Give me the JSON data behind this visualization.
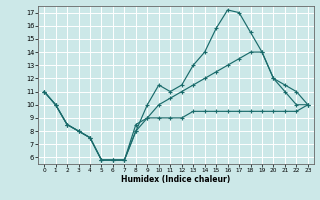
{
  "xlabel": "Humidex (Indice chaleur)",
  "bg_color": "#cce8e8",
  "grid_color": "#ffffff",
  "line_color": "#1a6b6b",
  "xlim": [
    -0.5,
    23.5
  ],
  "ylim": [
    5.5,
    17.5
  ],
  "xticks": [
    0,
    1,
    2,
    3,
    4,
    5,
    6,
    7,
    8,
    9,
    10,
    11,
    12,
    13,
    14,
    15,
    16,
    17,
    18,
    19,
    20,
    21,
    22,
    23
  ],
  "yticks": [
    6,
    7,
    8,
    9,
    10,
    11,
    12,
    13,
    14,
    15,
    16,
    17
  ],
  "line1_x": [
    0,
    1,
    2,
    3,
    4,
    5,
    6,
    7,
    8,
    9,
    10,
    11,
    12,
    13,
    14,
    15,
    16,
    17,
    18,
    19,
    20,
    21,
    22,
    23
  ],
  "line1_y": [
    11,
    10,
    8.5,
    8,
    7.5,
    5.8,
    5.8,
    5.8,
    8.5,
    9,
    9,
    9,
    9,
    9.5,
    9.5,
    9.5,
    9.5,
    9.5,
    9.5,
    9.5,
    9.5,
    9.5,
    9.5,
    10
  ],
  "line2_x": [
    0,
    1,
    2,
    3,
    4,
    5,
    6,
    7,
    8,
    9,
    10,
    11,
    12,
    13,
    14,
    15,
    16,
    17,
    18,
    19,
    20,
    21,
    22,
    23
  ],
  "line2_y": [
    11,
    10,
    8.5,
    8,
    7.5,
    5.8,
    5.8,
    5.8,
    8.0,
    10,
    11.5,
    11,
    11.5,
    13,
    14,
    15.8,
    17.2,
    17,
    15.5,
    14,
    12,
    11.5,
    11,
    10
  ],
  "line3_x": [
    0,
    1,
    2,
    3,
    4,
    5,
    6,
    7,
    8,
    9,
    10,
    11,
    12,
    13,
    14,
    15,
    16,
    17,
    18,
    19,
    20,
    21,
    22,
    23
  ],
  "line3_y": [
    11,
    10,
    8.5,
    8,
    7.5,
    5.8,
    5.8,
    5.8,
    8.0,
    9,
    10,
    10.5,
    11,
    11.5,
    12,
    12.5,
    13,
    13.5,
    14,
    14,
    12,
    11,
    10,
    10
  ]
}
